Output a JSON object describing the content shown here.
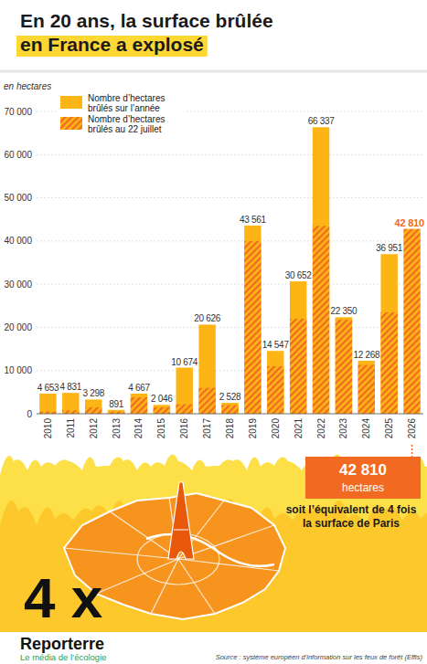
{
  "chart_data": {
    "type": "bar",
    "title": "En 20 ans, la surface brûlée en France a explosé",
    "y_label": "en hectares",
    "categories": [
      "2010",
      "2011",
      "2012",
      "2013",
      "2014",
      "2015",
      "2016",
      "2017",
      "2018",
      "2019",
      "2020",
      "2021",
      "2022",
      "2023",
      "2024",
      "2025",
      "2026"
    ],
    "series": [
      {
        "name": "Nombre d’hectares brûlés sur l’année",
        "color": "#fdb515",
        "type": "bar",
        "values": [
          4653,
          4831,
          3298,
          891,
          4667,
          2046,
          10674,
          20626,
          2528,
          43561,
          14547,
          30652,
          66337,
          22350,
          12268,
          36951,
          null
        ],
        "value_labels": [
          "4 653",
          "4 831",
          "3 298",
          "891",
          "4 667",
          "2 046",
          "10 674",
          "20 626",
          "2 528",
          "43 561",
          "14 547",
          "30 652",
          "66 337",
          "22 350",
          "12 268",
          "36 951",
          null
        ]
      },
      {
        "name": "Nombre d’hectares brûlés au 22 juillet",
        "color": "#f26a21",
        "type": "bar",
        "values": [
          500,
          800,
          1500,
          500,
          3800,
          1500,
          2200,
          6000,
          2000,
          40000,
          11000,
          22000,
          43500,
          21800,
          11300,
          23500,
          42810
        ],
        "value_labels": [
          null,
          null,
          null,
          null,
          null,
          null,
          null,
          null,
          null,
          null,
          null,
          null,
          null,
          null,
          null,
          null,
          "42 810"
        ]
      }
    ],
    "ylim": [
      0,
      70000
    ],
    "yticks": [
      0,
      {
        "value": 10000,
        "label": "10 000"
      },
      {
        "value": 20000,
        "label": "20 000"
      },
      {
        "value": 30000,
        "label": "30 000"
      },
      {
        "value": 40000,
        "label": "40 000"
      },
      {
        "value": 50000,
        "label": "50 000"
      },
      {
        "value": 60000,
        "label": "60 000"
      },
      {
        "value": 70000,
        "label": "70 000"
      }
    ],
    "grid": true,
    "legend": "top-left",
    "data_labels": true,
    "annotations": [
      "42 810",
      "hectares",
      "soit l’équivalent de 4 fois",
      "la surface de Paris",
      "4 x"
    ],
    "source": "Source : système européen d’information sur les feux de forêt (Effis)",
    "brand": "Reporterre",
    "tagline": "Le média de l’écologie"
  }
}
